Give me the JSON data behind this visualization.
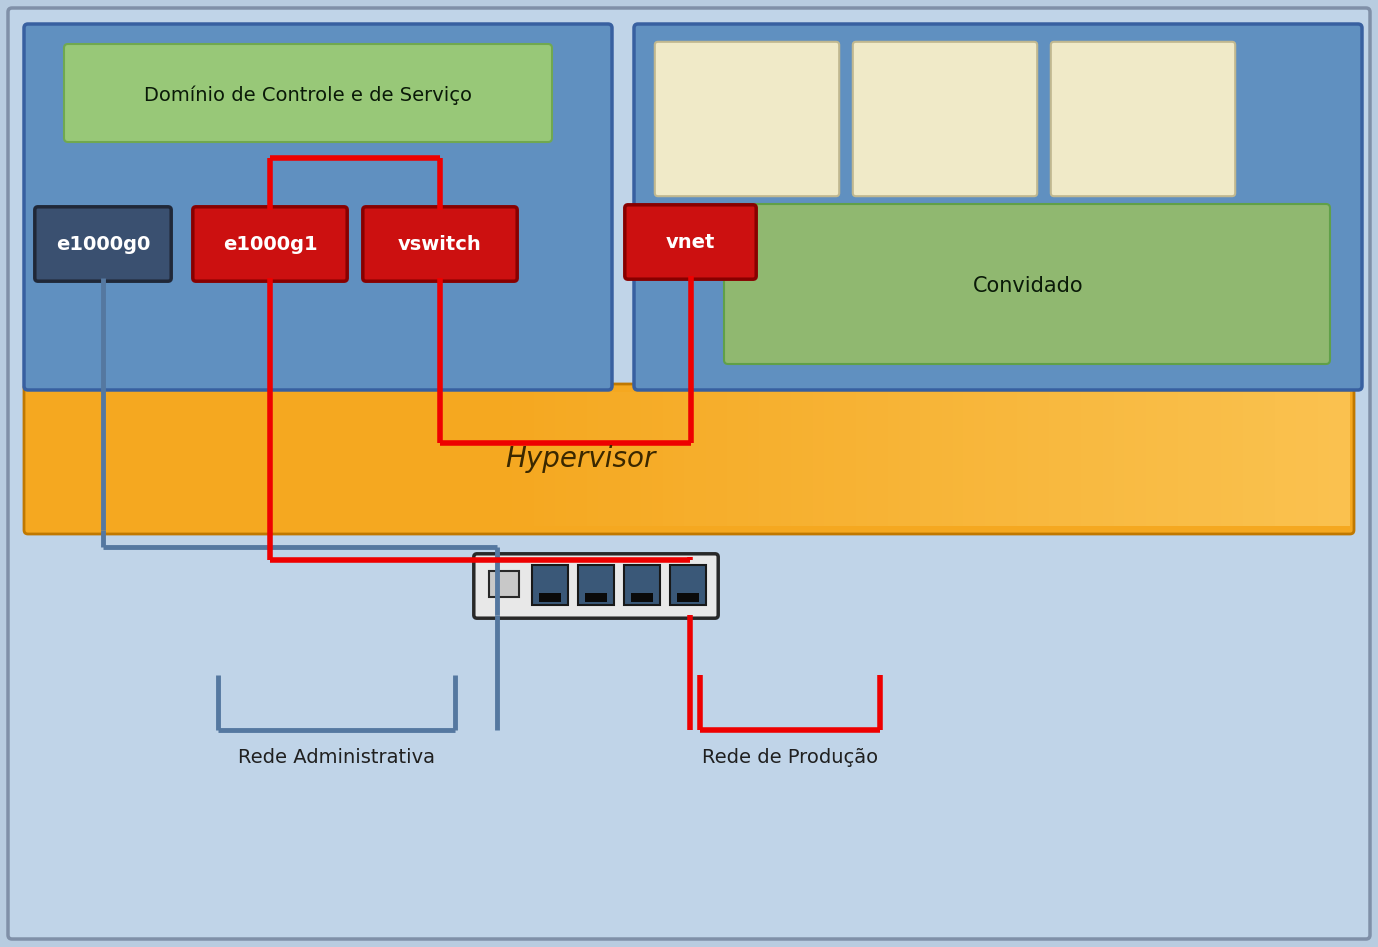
{
  "bg_color": "#b8cce0",
  "outer_bg": "#c0d4e8",
  "outer_edge": "#8090a8",
  "hypervisor_text": "Hypervisor",
  "dominio_text": "Domínio de Controle e de Serviço",
  "convidado_text": "Convidado",
  "e1000g0_text": "e1000g0",
  "e1000g1_text": "e1000g1",
  "vswitch_text": "vswitch",
  "vnet_text": "vnet",
  "rede_admin_text": "Rede Administrativa",
  "rede_prod_text": "Rede de Produção",
  "red_color": "#ee0000",
  "blue_color": "#5578a0",
  "ctrl_box_fc": "#6090c0",
  "ctrl_box_ec": "#3860a0",
  "guest_box_fc": "#6090c0",
  "guest_box_ec": "#3860a0",
  "dominio_fc": "#98c878",
  "dominio_ec": "#70a850",
  "convidado_fc": "#90b870",
  "convidado_ec": "#60a048",
  "vm_fc": "#f0eac8",
  "vm_ec": "#c0b890",
  "e0_fc": "#3a5070",
  "e0_ec": "#202838",
  "red_box_fc": "#cc1010",
  "red_box_ec": "#880000",
  "nic_fc": "#e8e8e8",
  "nic_ec": "#282828",
  "orange_fc": "#f5a820",
  "orange_ec": "#c07800",
  "orange_grad_fc": "#ffd878"
}
